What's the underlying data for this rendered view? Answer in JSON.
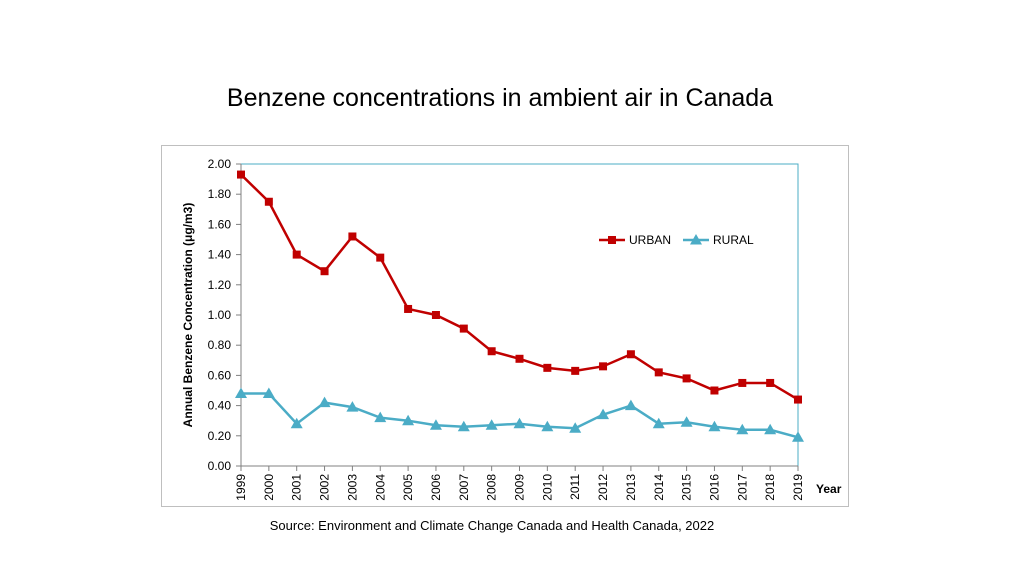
{
  "slide_title": "Benzene concentrations in ambient air in Canada",
  "source": "Source: Environment and Climate Change Canada and Health Canada, 2022",
  "colors": {
    "urban": "#c00000",
    "rural": "#4bacc6",
    "plot_border": "#4bacc6"
  },
  "chart_data": {
    "type": "line",
    "title": "",
    "xlabel": "Year",
    "ylabel": "Annual Benzene Concentration (μg/m3)",
    "x": [
      "1999",
      "2000",
      "2001",
      "2002",
      "2003",
      "2004",
      "2005",
      "2006",
      "2007",
      "2008",
      "2009",
      "2010",
      "2011",
      "2012",
      "2013",
      "2014",
      "2015",
      "2016",
      "2017",
      "2018",
      "2019"
    ],
    "ylim": [
      0,
      2
    ],
    "yticks": [
      "0.00",
      "0.20",
      "0.40",
      "0.60",
      "0.80",
      "1.00",
      "1.20",
      "1.40",
      "1.60",
      "1.80",
      "2.00"
    ],
    "grid": false,
    "legend_position": "right",
    "series": [
      {
        "name": "URBAN",
        "marker": "square",
        "values": [
          1.93,
          1.75,
          1.4,
          1.29,
          1.52,
          1.38,
          1.04,
          1.0,
          0.91,
          0.76,
          0.71,
          0.65,
          0.63,
          0.66,
          0.74,
          0.62,
          0.58,
          0.5,
          0.55,
          0.55,
          0.44
        ]
      },
      {
        "name": "RURAL",
        "marker": "triangle",
        "values": [
          0.48,
          0.48,
          0.28,
          0.42,
          0.39,
          0.32,
          0.3,
          0.27,
          0.26,
          0.27,
          0.28,
          0.26,
          0.25,
          0.34,
          0.4,
          0.28,
          0.29,
          0.26,
          0.24,
          0.24,
          0.19
        ]
      }
    ]
  }
}
